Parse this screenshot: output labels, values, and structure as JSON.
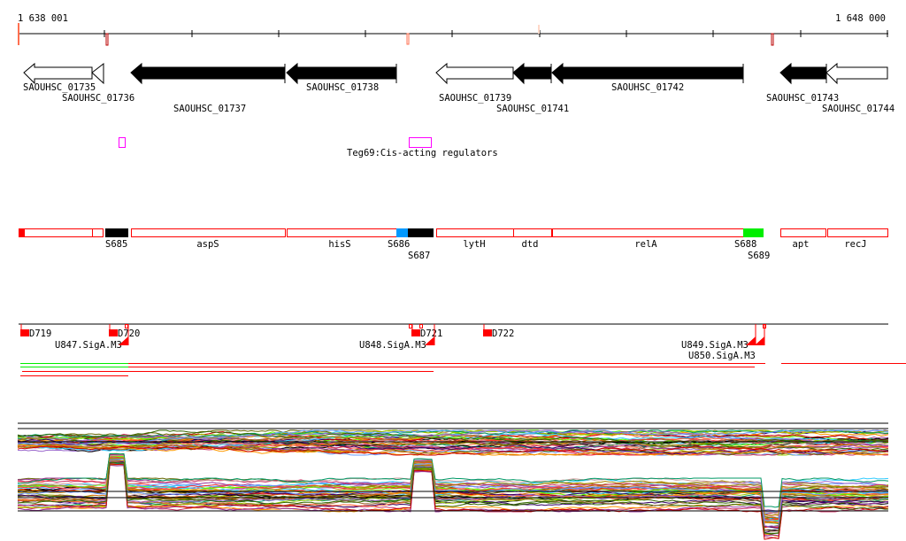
{
  "ruler": {
    "start_label": "1 638 001",
    "end_label": "1 648 000"
  },
  "genes": [
    {
      "label": "SAOUHSC_01735",
      "fill": "white"
    },
    {
      "label": "SAOUHSC_01736",
      "fill": "white"
    },
    {
      "label": "SAOUHSC_01737",
      "fill": "black"
    },
    {
      "label": "SAOUHSC_01738",
      "fill": "black"
    },
    {
      "label": "SAOUHSC_01739",
      "fill": "white"
    },
    {
      "label": "SAOUHSC_01741",
      "fill": "black"
    },
    {
      "label": "SAOUHSC_01742",
      "fill": "black"
    },
    {
      "label": "SAOUHSC_01743",
      "fill": "black"
    },
    {
      "label": "SAOUHSC_01744",
      "fill": "white"
    }
  ],
  "regulators": {
    "label": "Teg69:Cis-acting regulators",
    "color": "#ff00ff"
  },
  "annotations": [
    "S685",
    "aspS",
    "hisS",
    "S686",
    "S687",
    "lytH",
    "dtd",
    "relA",
    "S688",
    "S689",
    "apt",
    "recJ"
  ],
  "promoters": [
    "D719",
    "D720",
    "D721",
    "D722"
  ],
  "motifs": [
    "U847.SigA.M3",
    "U848.SigA.M3",
    "U849.SigA.M3",
    "U850.SigA.M3"
  ],
  "colors": {
    "red": "#ff0000",
    "blue": "#0099ff",
    "green": "#00ee00",
    "orange": "#ff7050",
    "darkred": "#bb0000"
  },
  "trace_colors": [
    "#000000",
    "#ff6633",
    "#99cc00",
    "#cc3366",
    "#666600",
    "#33ccff",
    "#993399",
    "#cc6600",
    "#66ff00",
    "#996633",
    "#ff3333",
    "#330066",
    "#cc9999",
    "#009966",
    "#ff9900",
    "#6699ff",
    "#aa8800",
    "#cc0000",
    "#9966cc",
    "#336600"
  ]
}
